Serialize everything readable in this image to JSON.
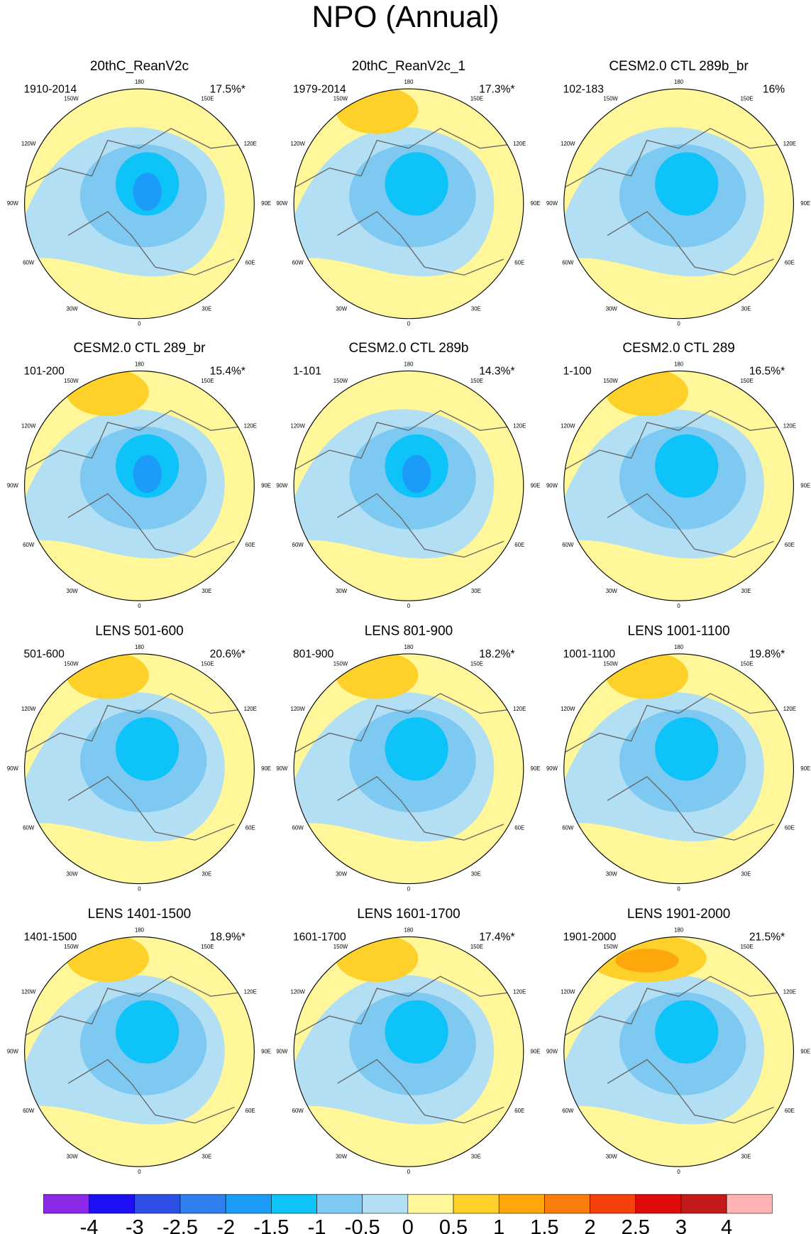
{
  "title": "NPO (Annual)",
  "panels": [
    {
      "title": "20thC_ReanV2c",
      "period": "1910-2014",
      "variance": "17.5%*"
    },
    {
      "title": "20thC_ReanV2c_1",
      "period": "1979-2014",
      "variance": "17.3%*"
    },
    {
      "title": "CESM2.0 CTL 289b_br",
      "period": "102-183",
      "variance": "16%"
    },
    {
      "title": "CESM2.0 CTL 289_br",
      "period": "101-200",
      "variance": "15.4%*"
    },
    {
      "title": "CESM2.0 CTL 289b",
      "period": "1-101",
      "variance": "14.3%*"
    },
    {
      "title": "CESM2.0 CTL 289",
      "period": "1-100",
      "variance": "16.5%*"
    },
    {
      "title": "LENS 501-600",
      "period": "501-600",
      "variance": "20.6%*"
    },
    {
      "title": "LENS 801-900",
      "period": "801-900",
      "variance": "18.2%*"
    },
    {
      "title": "LENS 1001-1100",
      "period": "1001-1100",
      "variance": "19.8%*"
    },
    {
      "title": "LENS 1401-1500",
      "period": "1401-1500",
      "variance": "18.9%*"
    },
    {
      "title": "LENS 1601-1700",
      "period": "1601-1700",
      "variance": "17.4%*"
    },
    {
      "title": "LENS 1901-2000",
      "period": "1901-2000",
      "variance": "21.5%*"
    }
  ],
  "lon_labels": [
    "180",
    "150W",
    "150E",
    "120W",
    "120E",
    "90W",
    "90E",
    "60W",
    "60E",
    "30W",
    "30E",
    "0"
  ],
  "colorbar": {
    "colors": [
      "#8c28e8",
      "#1e10f5",
      "#2d4fe6",
      "#2f80ee",
      "#1a9cf8",
      "#0dc3f8",
      "#7dc9f2",
      "#b2dff3",
      "#fff799",
      "#fdd02a",
      "#fda70a",
      "#f97c0c",
      "#f7410c",
      "#e00b0b",
      "#c41a1a",
      "#ffb3b3"
    ],
    "levels": [
      -4,
      -3,
      -2.5,
      -2,
      -1.5,
      -1,
      -0.5,
      0,
      0.5,
      1,
      1.5,
      2,
      2.5,
      3,
      4
    ]
  }
}
